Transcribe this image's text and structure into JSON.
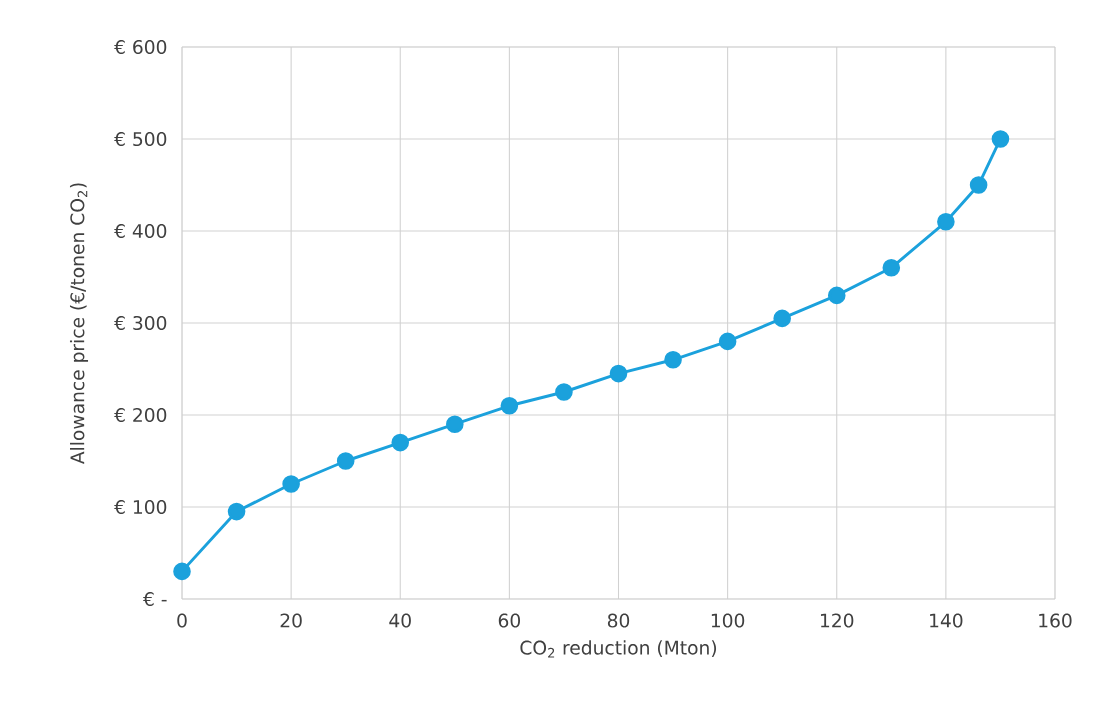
{
  "chart_data": {
    "type": "line",
    "xlabel": "CO$_{2}$ reduction (Mton)",
    "ylabel": "Allowance price (€/tonen CO$_{2}$)",
    "x": [
      0,
      10,
      20,
      30,
      40,
      50,
      60,
      70,
      80,
      90,
      100,
      110,
      120,
      130,
      140,
      146,
      150
    ],
    "series": [
      {
        "color": "#1ba1dc",
        "values": [
          30,
          95,
          125,
          150,
          170,
          190,
          210,
          225,
          245,
          260,
          280,
          305,
          330,
          360,
          410,
          450,
          500
        ]
      }
    ],
    "xlim": [
      0,
      160
    ],
    "xticks": [
      0,
      20,
      40,
      60,
      80,
      100,
      120,
      140,
      160
    ],
    "ylim": [
      0,
      600
    ],
    "yticks": [
      {
        "value": 0,
        "label": "€ -"
      },
      {
        "value": 100,
        "label": "€ 100"
      },
      {
        "value": 200,
        "label": "€ 200"
      },
      {
        "value": 300,
        "label": "€ 300"
      },
      {
        "value": 400,
        "label": "€ 400"
      },
      {
        "value": 500,
        "label": "€ 500"
      },
      {
        "value": 600,
        "label": "€ 600"
      }
    ],
    "grid": true,
    "marker": "circle",
    "line_style": "solid"
  }
}
